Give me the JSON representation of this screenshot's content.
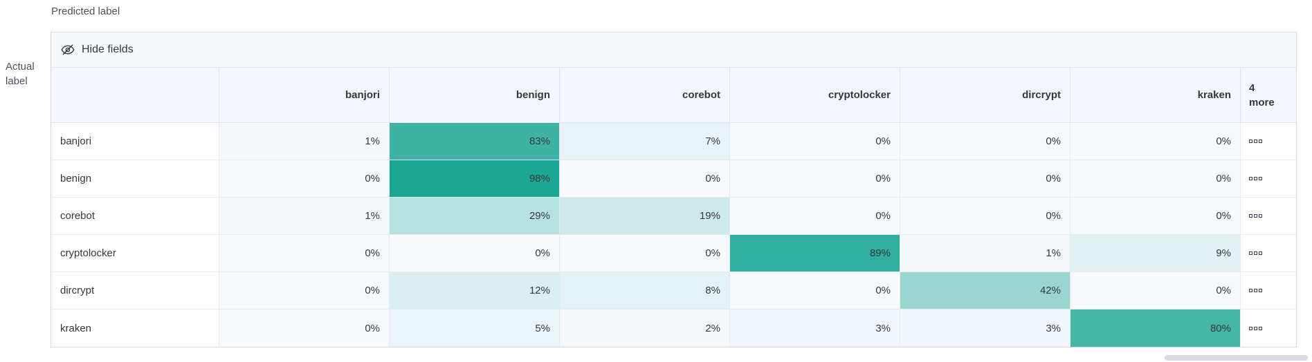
{
  "axes": {
    "predicted_label": "Predicted label",
    "actual_label": "Actual label"
  },
  "toolbar": {
    "hide_fields": "Hide fields"
  },
  "icons": {
    "toolbar_icon": "eye-closed-icon",
    "row_action_icon": "boxes-horizontal-icon"
  },
  "more_header": {
    "count": "4",
    "word": "more"
  },
  "chart_data": {
    "type": "heatmap",
    "x_axis_label": "Predicted label",
    "y_axis_label": "Actual label",
    "columns": [
      "banjori",
      "benign",
      "corebot",
      "cryptolocker",
      "dircrypt",
      "kraken"
    ],
    "hidden_columns_label": "4 more",
    "rows": [
      "banjori",
      "benign",
      "corebot",
      "cryptolocker",
      "dircrypt",
      "kraken"
    ],
    "values_percent": [
      [
        1,
        83,
        7,
        0,
        0,
        0
      ],
      [
        0,
        98,
        0,
        0,
        0,
        0
      ],
      [
        1,
        29,
        19,
        0,
        0,
        0
      ],
      [
        0,
        0,
        0,
        89,
        1,
        9
      ],
      [
        0,
        12,
        8,
        0,
        42,
        0
      ],
      [
        0,
        5,
        2,
        3,
        3,
        80
      ]
    ],
    "values_display": [
      [
        "1%",
        "83%",
        "7%",
        "0%",
        "0%",
        "0%"
      ],
      [
        "0%",
        "98%",
        "0%",
        "0%",
        "0%",
        "0%"
      ],
      [
        "1%",
        "29%",
        "19%",
        "0%",
        "0%",
        "0%"
      ],
      [
        "0%",
        "0%",
        "0%",
        "89%",
        "1%",
        "9%"
      ],
      [
        "0%",
        "12%",
        "8%",
        "0%",
        "42%",
        "0%"
      ],
      [
        "0%",
        "5%",
        "2%",
        "3%",
        "3%",
        "80%"
      ]
    ],
    "legend": "off",
    "cell_color_scale": {
      "base": "#19a591",
      "background": "#f7f9fc"
    }
  },
  "colors": {
    "header_bg": "#f4f6fb",
    "toolbar_bg": "#f6f8fc",
    "outer_border": "#d3dae6",
    "inner_border": "#e4e9f2",
    "text": "#343741"
  }
}
